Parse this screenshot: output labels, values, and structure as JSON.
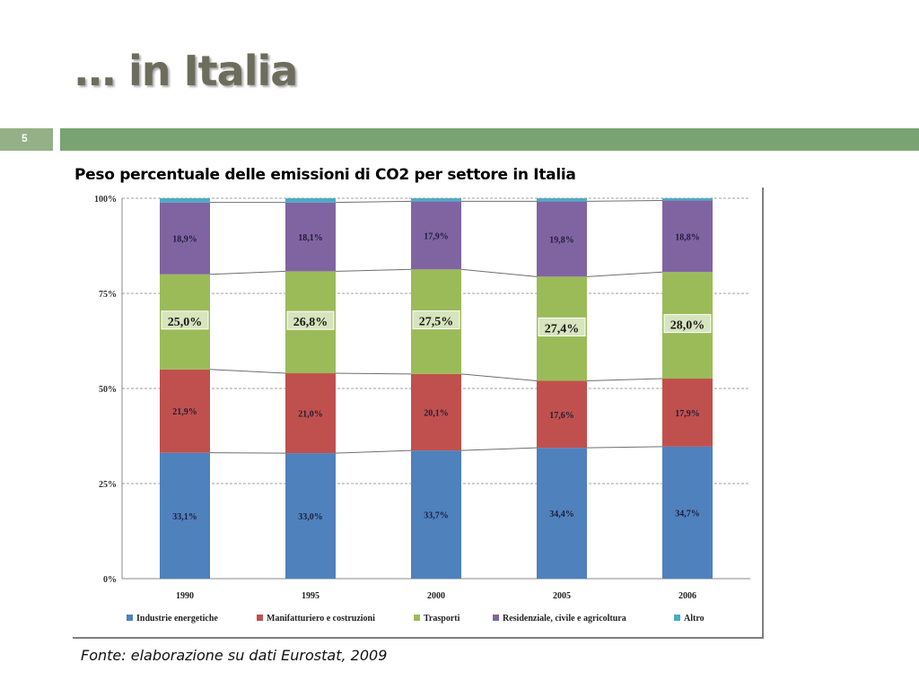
{
  "slide": {
    "title": "… in Italia",
    "page_number": "5",
    "chart_heading": "Peso percentuale delle emissioni di CO2 per settore in Italia",
    "source_note": "Fonte: elaborazione su dati Eurostat, 2009"
  },
  "chart_data": {
    "type": "bar",
    "stacked": true,
    "percent": true,
    "title": "",
    "xlabel": "",
    "ylabel": "",
    "ylim": [
      0,
      100
    ],
    "yticks": [
      "0%",
      "25%",
      "50%",
      "75%",
      "100%"
    ],
    "grid": true,
    "legend_position": "bottom",
    "categories": [
      "1990",
      "1995",
      "2000",
      "2005",
      "2006"
    ],
    "series": [
      {
        "name": "Industrie energetiche",
        "color": "#4f81bd",
        "values": [
          33.1,
          33.0,
          33.7,
          34.4,
          34.7
        ],
        "labels": [
          "33,1%",
          "33,0%",
          "33,7%",
          "34,4%",
          "34,7%"
        ]
      },
      {
        "name": "Manifatturiero e costruzioni",
        "color": "#c0504d",
        "values": [
          21.9,
          21.0,
          20.1,
          17.6,
          17.9
        ],
        "labels": [
          "21,9%",
          "21,0%",
          "20,1%",
          "17,6%",
          "17,9%"
        ]
      },
      {
        "name": "Trasporti",
        "color": "#9bbb59",
        "values": [
          25.0,
          26.8,
          27.5,
          27.4,
          28.0
        ],
        "labels": [
          "25,0%",
          "26,8%",
          "27,5%",
          "27,4%",
          "28,0%"
        ],
        "highlight_labels": true
      },
      {
        "name": "Residenziale, civile e agricoltura",
        "color": "#8064a2",
        "values": [
          18.9,
          18.1,
          17.9,
          19.8,
          18.8
        ],
        "labels": [
          "18,9%",
          "18,1%",
          "17,9%",
          "19,8%",
          "18,8%"
        ]
      },
      {
        "name": "Altro",
        "color": "#4bacc6",
        "values": [
          1.1,
          1.1,
          0.8,
          0.8,
          0.6
        ],
        "labels": []
      }
    ]
  }
}
